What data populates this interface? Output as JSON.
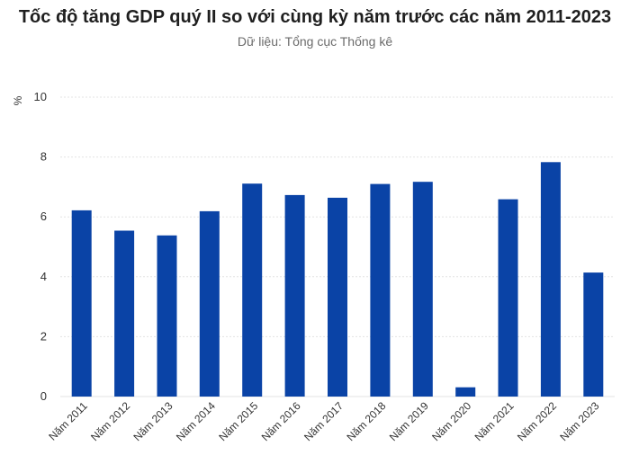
{
  "chart_data": {
    "type": "bar",
    "title": "Tốc độ tăng GDP quý II so với cùng kỳ năm trước các năm 2011-2023",
    "subtitle": "Dữ liệu: Tổng cục Thống kê",
    "unit": "%",
    "categories": [
      "Năm 2011",
      "Năm 2012",
      "Năm 2013",
      "Năm 2014",
      "Năm 2015",
      "Năm 2016",
      "Năm 2017",
      "Năm 2018",
      "Năm 2019",
      "Năm 2020",
      "Năm 2021",
      "Năm 2022",
      "Năm 2023"
    ],
    "values": [
      6.22,
      5.54,
      5.38,
      6.19,
      7.11,
      6.73,
      6.64,
      7.1,
      7.17,
      0.31,
      6.59,
      7.83,
      4.14
    ],
    "ylim": [
      0,
      10
    ],
    "yticks": [
      0,
      2,
      4,
      6,
      8,
      10
    ],
    "grid": true,
    "bar_color": "#0a43a6",
    "grid_color": "#e3e3e3"
  }
}
